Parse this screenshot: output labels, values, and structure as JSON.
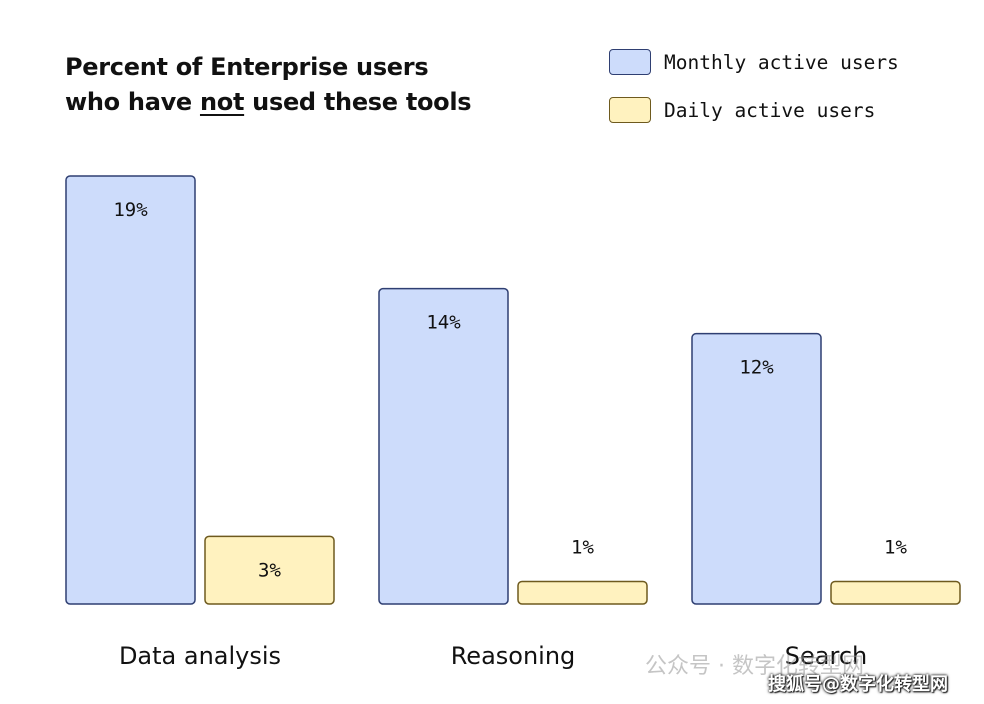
{
  "chart_data": {
    "type": "bar",
    "title_line1": "Percent of Enterprise users",
    "title_line2_pre": "who have ",
    "title_line2_em": "not",
    "title_line2_post": " used these tools",
    "categories": [
      "Data analysis",
      "Reasoning",
      "Search"
    ],
    "series": [
      {
        "name": "Monthly active users",
        "values": [
          19,
          14,
          12
        ],
        "labels": [
          "19%",
          "14%",
          "12%"
        ],
        "fill": "#cddcfb",
        "stroke": "#2f3f72"
      },
      {
        "name": "Daily active users",
        "values": [
          3,
          1,
          1
        ],
        "labels": [
          "3%",
          "1%",
          "1%"
        ],
        "fill": "#fff2bf",
        "stroke": "#6e5a1e"
      }
    ],
    "ylim": [
      0,
      19
    ],
    "grid": false,
    "legend_position": "top-right"
  },
  "watermark": {
    "line1": "公众号 · 数字化转型网",
    "line2": "搜狐号@数字化转型网"
  }
}
